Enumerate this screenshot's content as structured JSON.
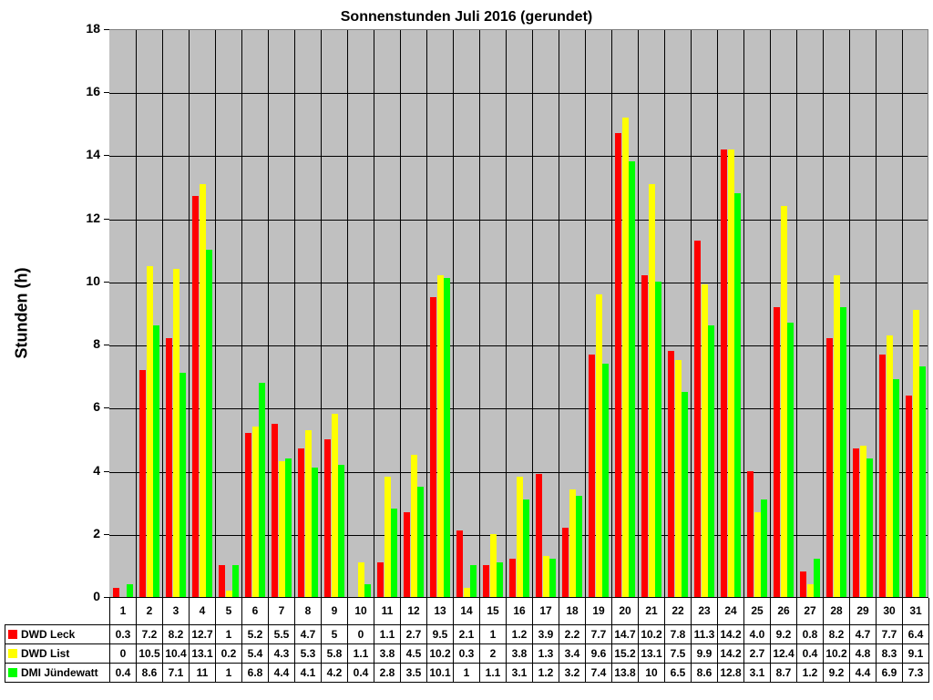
{
  "chart_data": {
    "type": "bar",
    "title": "Sonnenstunden Juli 2016 (gerundet)",
    "xlabel": "",
    "ylabel": "Stunden (h)",
    "ylim": [
      0,
      18
    ],
    "yticks": [
      0,
      2,
      4,
      6,
      8,
      10,
      12,
      14,
      16,
      18
    ],
    "grid": true,
    "legend_position": "data-table-left",
    "categories": [
      "1",
      "2",
      "3",
      "4",
      "5",
      "6",
      "7",
      "8",
      "9",
      "10",
      "11",
      "12",
      "13",
      "14",
      "15",
      "16",
      "17",
      "18",
      "19",
      "20",
      "21",
      "22",
      "23",
      "24",
      "25",
      "26",
      "27",
      "28",
      "29",
      "30",
      "31"
    ],
    "series": [
      {
        "name": "DWD Leck",
        "color": "#ff0000",
        "labels": [
          "0.3",
          "7.2",
          "8.2",
          "12.7",
          "1",
          "5.2",
          "5.5",
          "4.7",
          "5",
          "0",
          "1.1",
          "2.7",
          "9.5",
          "2.1",
          "1",
          "1.2",
          "3.9",
          "2.2",
          "7.7",
          "14.7",
          "10.2",
          "7.8",
          "11.3",
          "14.2",
          "4.0",
          "9.2",
          "0.8",
          "8.2",
          "4.7",
          "7.7",
          "6.4"
        ],
        "values": [
          0.3,
          7.2,
          8.2,
          12.7,
          1,
          5.2,
          5.5,
          4.7,
          5,
          0,
          1.1,
          2.7,
          9.5,
          2.1,
          1,
          1.2,
          3.9,
          2.2,
          7.7,
          14.7,
          10.2,
          7.8,
          11.3,
          14.2,
          4.0,
          9.2,
          0.8,
          8.2,
          4.7,
          7.7,
          6.4
        ]
      },
      {
        "name": "DWD List",
        "color": "#ffff00",
        "labels": [
          "0",
          "10.5",
          "10.4",
          "13.1",
          "0.2",
          "5.4",
          "4.3",
          "5.3",
          "5.8",
          "1.1",
          "3.8",
          "4.5",
          "10.2",
          "0.3",
          "2",
          "3.8",
          "1.3",
          "3.4",
          "9.6",
          "15.2",
          "13.1",
          "7.5",
          "9.9",
          "14.2",
          "2.7",
          "12.4",
          "0.4",
          "10.2",
          "4.8",
          "8.3",
          "9.1"
        ],
        "values": [
          0,
          10.5,
          10.4,
          13.1,
          0.2,
          5.4,
          4.3,
          5.3,
          5.8,
          1.1,
          3.8,
          4.5,
          10.2,
          0.3,
          2,
          3.8,
          1.3,
          3.4,
          9.6,
          15.2,
          13.1,
          7.5,
          9.9,
          14.2,
          2.7,
          12.4,
          0.4,
          10.2,
          4.8,
          8.3,
          9.1
        ]
      },
      {
        "name": "DMI Jündewatt",
        "color": "#00ff00",
        "labels": [
          "0.4",
          "8.6",
          "7.1",
          "11",
          "1",
          "6.8",
          "4.4",
          "4.1",
          "4.2",
          "0.4",
          "2.8",
          "3.5",
          "10.1",
          "1",
          "1.1",
          "3.1",
          "1.2",
          "3.2",
          "7.4",
          "13.8",
          "10",
          "6.5",
          "8.6",
          "12.8",
          "3.1",
          "8.7",
          "1.2",
          "9.2",
          "4.4",
          "6.9",
          "7.3"
        ],
        "values": [
          0.4,
          8.6,
          7.1,
          11,
          1,
          6.8,
          4.4,
          4.1,
          4.2,
          0.4,
          2.8,
          3.5,
          10.1,
          1,
          1.1,
          3.1,
          1.2,
          3.2,
          7.4,
          13.8,
          10,
          6.5,
          8.6,
          12.8,
          3.1,
          8.7,
          1.2,
          9.2,
          4.4,
          6.9,
          7.3
        ]
      }
    ]
  }
}
